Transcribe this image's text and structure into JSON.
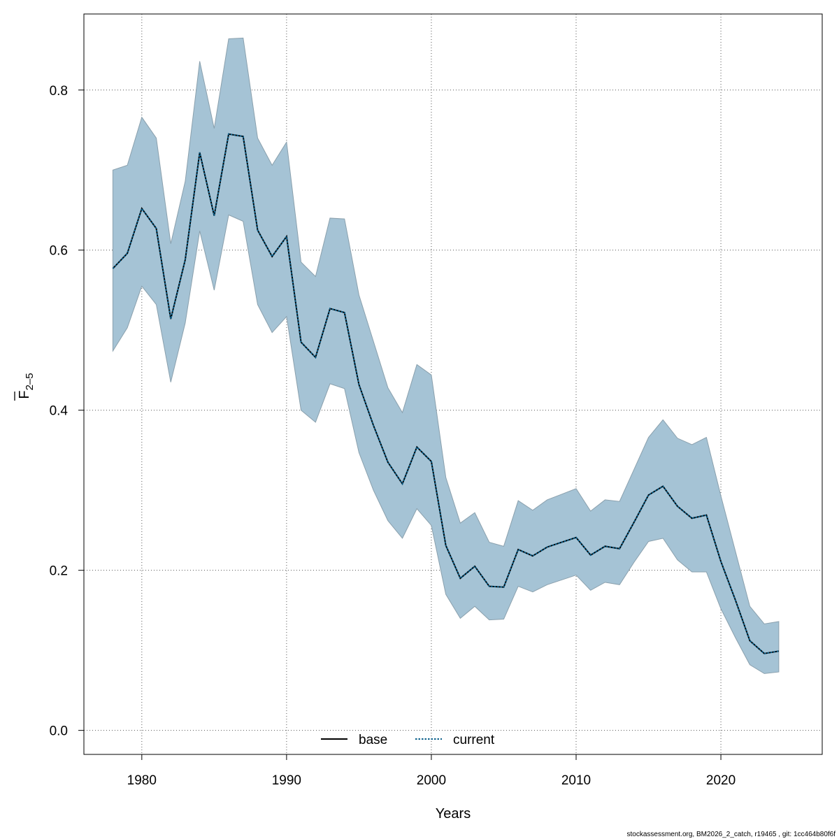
{
  "chart_data": {
    "type": "area",
    "x": [
      1978,
      1979,
      1980,
      1981,
      1982,
      1983,
      1984,
      1985,
      1986,
      1987,
      1988,
      1989,
      1990,
      1991,
      1992,
      1993,
      1994,
      1995,
      1996,
      1997,
      1998,
      1999,
      2000,
      2001,
      2002,
      2003,
      2004,
      2005,
      2006,
      2007,
      2008,
      2009,
      2010,
      2011,
      2012,
      2013,
      2014,
      2015,
      2016,
      2017,
      2018,
      2019,
      2020,
      2021,
      2022,
      2023,
      2024
    ],
    "series": [
      {
        "name": "base",
        "style": "solid",
        "color": "#000000",
        "values": [
          0.577,
          0.596,
          0.652,
          0.627,
          0.514,
          0.588,
          0.722,
          0.643,
          0.745,
          0.742,
          0.625,
          0.592,
          0.617,
          0.485,
          0.466,
          0.527,
          0.522,
          0.432,
          0.381,
          0.335,
          0.308,
          0.354,
          0.336,
          0.231,
          0.19,
          0.205,
          0.18,
          0.179,
          0.226,
          0.218,
          0.229,
          0.235,
          0.241,
          0.219,
          0.23,
          0.227,
          0.26,
          0.294,
          0.305,
          0.28,
          0.265,
          0.269,
          0.211,
          0.163,
          0.112,
          0.096,
          0.099
        ]
      },
      {
        "name": "current",
        "style": "dotted",
        "color": "#0b5f8a",
        "values": [
          0.577,
          0.596,
          0.652,
          0.627,
          0.514,
          0.588,
          0.722,
          0.643,
          0.745,
          0.742,
          0.625,
          0.592,
          0.617,
          0.485,
          0.466,
          0.527,
          0.522,
          0.432,
          0.381,
          0.335,
          0.308,
          0.354,
          0.336,
          0.231,
          0.19,
          0.205,
          0.18,
          0.179,
          0.226,
          0.218,
          0.229,
          0.235,
          0.241,
          0.219,
          0.23,
          0.227,
          0.26,
          0.294,
          0.305,
          0.28,
          0.265,
          0.269,
          0.211,
          0.163,
          0.112,
          0.096,
          0.099
        ]
      }
    ],
    "band": {
      "upper": [
        0.7,
        0.706,
        0.766,
        0.74,
        0.608,
        0.686,
        0.836,
        0.752,
        0.864,
        0.865,
        0.74,
        0.706,
        0.735,
        0.585,
        0.567,
        0.64,
        0.639,
        0.544,
        0.486,
        0.428,
        0.397,
        0.457,
        0.444,
        0.316,
        0.259,
        0.272,
        0.235,
        0.23,
        0.287,
        0.275,
        0.288,
        0.295,
        0.302,
        0.274,
        0.288,
        0.286,
        0.326,
        0.366,
        0.388,
        0.365,
        0.357,
        0.366,
        0.293,
        0.224,
        0.155,
        0.133,
        0.136
      ],
      "lower": [
        0.474,
        0.503,
        0.555,
        0.532,
        0.435,
        0.509,
        0.624,
        0.55,
        0.644,
        0.636,
        0.532,
        0.497,
        0.517,
        0.4,
        0.385,
        0.433,
        0.427,
        0.347,
        0.3,
        0.262,
        0.24,
        0.277,
        0.256,
        0.17,
        0.14,
        0.155,
        0.138,
        0.139,
        0.18,
        0.173,
        0.182,
        0.188,
        0.194,
        0.175,
        0.185,
        0.182,
        0.21,
        0.236,
        0.24,
        0.213,
        0.198,
        0.198,
        0.152,
        0.116,
        0.082,
        0.071,
        0.073
      ],
      "fill": "#a5c3d5",
      "stroke": "#8aa0ad"
    },
    "xlabel": "Years",
    "ylabel_main": "F",
    "ylabel_sub": "2–5",
    "xlim": [
      1976,
      2027
    ],
    "ylim": [
      -0.03,
      0.895
    ],
    "xticks": [
      1980,
      1990,
      2000,
      2010,
      2020
    ],
    "yticks": [
      0.0,
      0.2,
      0.4,
      0.6,
      0.8
    ],
    "ytick_labels": [
      "0.0",
      "0.2",
      "0.4",
      "0.6",
      "0.8"
    ],
    "grid": true,
    "legend_position": "bottom-center",
    "footer": "stockassessment.org, BM2026_2_catch, r19465 , git: 1cc464b80f6f"
  }
}
